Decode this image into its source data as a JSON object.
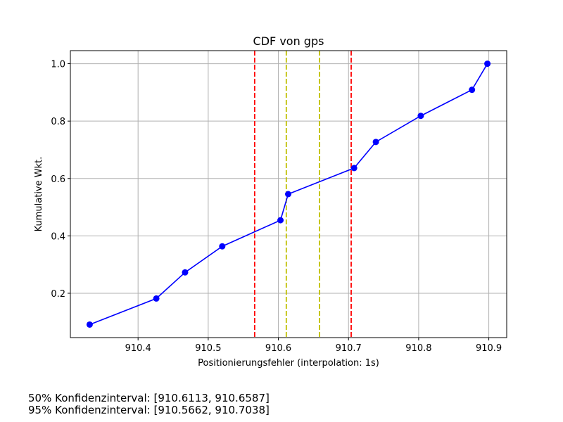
{
  "chart_data": {
    "type": "line",
    "title": "CDF von gps",
    "xlabel": "Positionierungsfehler (interpolation: 1s)",
    "ylabel": "Kumulative Wkt.",
    "xlim": [
      910.3035,
      910.9255
    ],
    "ylim": [
      0.0455,
      1.0455
    ],
    "xticks": [
      910.4,
      910.5,
      910.6,
      910.7,
      910.8,
      910.9
    ],
    "xtick_labels": [
      "910.4",
      "910.5",
      "910.6",
      "910.7",
      "910.8",
      "910.9"
    ],
    "yticks": [
      0.2,
      0.4,
      0.6,
      0.8,
      1.0
    ],
    "ytick_labels": [
      "0.2",
      "0.4",
      "0.6",
      "0.8",
      "1.0"
    ],
    "grid": true,
    "series": [
      {
        "color": "#0000ff",
        "marker": "circle",
        "x": [
          910.331,
          910.426,
          910.467,
          910.52,
          910.603,
          910.614,
          910.708,
          910.739,
          910.803,
          910.876,
          910.898
        ],
        "y": [
          0.0909,
          0.1818,
          0.2727,
          0.3636,
          0.4545,
          0.5455,
          0.6364,
          0.7273,
          0.8182,
          0.9091,
          1.0
        ]
      }
    ],
    "vlines": [
      {
        "x": 910.5662,
        "color": "#ff0000",
        "style": "dashed"
      },
      {
        "x": 910.7038,
        "color": "#ff0000",
        "style": "dashed"
      },
      {
        "x": 910.6113,
        "color": "#bfbf00",
        "style": "dashed"
      },
      {
        "x": 910.6587,
        "color": "#bfbf00",
        "style": "dashed"
      }
    ]
  },
  "notes": {
    "ci50": "50% Konfidenzinterval: [910.6113, 910.6587]",
    "ci95": "95% Konfidenzinterval: [910.5662, 910.7038]"
  }
}
